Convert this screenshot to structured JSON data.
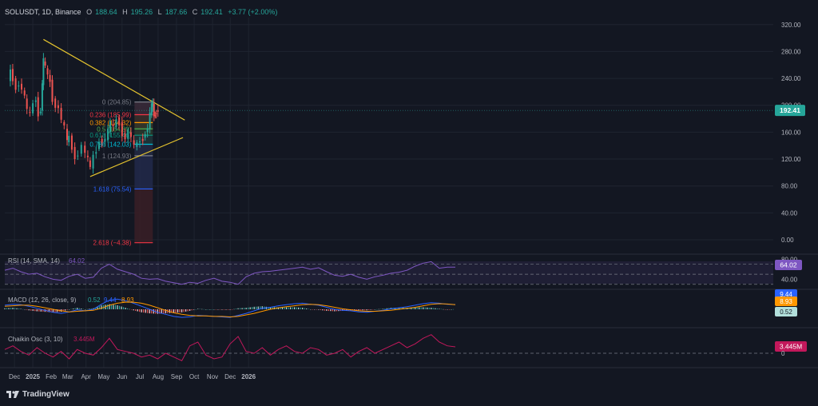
{
  "header": {
    "symbol": "SOLUSDT, 1D, Binance",
    "ohlc": [
      {
        "k": "O",
        "v": "188.64"
      },
      {
        "k": "H",
        "v": "195.26"
      },
      {
        "k": "L",
        "v": "187.66"
      },
      {
        "k": "C",
        "v": "192.41"
      }
    ],
    "change": "+3.77 (+2.00%)"
  },
  "colors": {
    "up": "#26a69a",
    "down": "#ef5350",
    "bg": "#131722",
    "grid": "#1f2430",
    "trend": "#e5c42e",
    "rsi": "#7e57c2",
    "macd": "#2962ff",
    "signal": "#ff9800",
    "chaikin": "#c2185b"
  },
  "chart_data": [
    {
      "type": "candlestick",
      "title": "SOLUSDT, 1D, Binance",
      "ylim": [
        -20,
        330
      ],
      "y_ticks": [
        "320.00",
        "280.00",
        "240.00",
        "200.00",
        "160.00",
        "120.00",
        "80.00",
        "40.00",
        "0.00"
      ],
      "x_ticks": [
        "Dec",
        "2025",
        "Feb",
        "Mar",
        "Apr",
        "May",
        "Jun",
        "Jul",
        "Aug",
        "Sep",
        "Oct",
        "Nov",
        "Dec",
        "2026"
      ],
      "price_label": "192.41",
      "price_series": [
        {
          "date": "2024-11-20",
          "close": 236
        },
        {
          "date": "2024-11-24",
          "close": 254
        },
        {
          "date": "2024-11-28",
          "close": 240
        },
        {
          "date": "2024-12-03",
          "close": 228
        },
        {
          "date": "2024-12-08",
          "close": 232
        },
        {
          "date": "2024-12-13",
          "close": 222
        },
        {
          "date": "2024-12-18",
          "close": 210
        },
        {
          "date": "2024-12-22",
          "close": 190
        },
        {
          "date": "2024-12-27",
          "close": 188
        },
        {
          "date": "2025-01-01",
          "close": 205
        },
        {
          "date": "2025-01-06",
          "close": 212
        },
        {
          "date": "2025-01-10",
          "close": 188
        },
        {
          "date": "2025-01-14",
          "close": 192
        },
        {
          "date": "2025-01-17",
          "close": 230
        },
        {
          "date": "2025-01-19",
          "close": 265
        },
        {
          "date": "2025-01-22",
          "close": 255
        },
        {
          "date": "2025-01-26",
          "close": 245
        },
        {
          "date": "2025-01-30",
          "close": 238
        },
        {
          "date": "2025-02-03",
          "close": 210
        },
        {
          "date": "2025-02-08",
          "close": 200
        },
        {
          "date": "2025-02-13",
          "close": 196
        },
        {
          "date": "2025-02-18",
          "close": 175
        },
        {
          "date": "2025-02-23",
          "close": 165
        },
        {
          "date": "2025-02-28",
          "close": 145
        },
        {
          "date": "2025-03-03",
          "close": 155
        },
        {
          "date": "2025-03-08",
          "close": 138
        },
        {
          "date": "2025-03-13",
          "close": 125
        },
        {
          "date": "2025-03-18",
          "close": 128
        },
        {
          "date": "2025-03-24",
          "close": 140
        },
        {
          "date": "2025-03-30",
          "close": 125
        },
        {
          "date": "2025-04-04",
          "close": 118
        },
        {
          "date": "2025-04-08",
          "close": 106
        },
        {
          "date": "2025-04-13",
          "close": 128
        },
        {
          "date": "2025-04-18",
          "close": 135
        },
        {
          "date": "2025-04-23",
          "close": 150
        },
        {
          "date": "2025-04-28",
          "close": 146
        },
        {
          "date": "2025-05-03",
          "close": 148
        },
        {
          "date": "2025-05-08",
          "close": 160
        },
        {
          "date": "2025-05-12",
          "close": 172
        },
        {
          "date": "2025-05-17",
          "close": 168
        },
        {
          "date": "2025-05-22",
          "close": 182
        },
        {
          "date": "2025-05-27",
          "close": 175
        },
        {
          "date": "2025-06-01",
          "close": 158
        },
        {
          "date": "2025-06-06",
          "close": 150
        },
        {
          "date": "2025-06-11",
          "close": 160
        },
        {
          "date": "2025-06-16",
          "close": 148
        },
        {
          "date": "2025-06-21",
          "close": 138
        },
        {
          "date": "2025-06-26",
          "close": 145
        },
        {
          "date": "2025-07-01",
          "close": 150
        },
        {
          "date": "2025-07-06",
          "close": 152
        },
        {
          "date": "2025-07-10",
          "close": 160
        },
        {
          "date": "2025-07-14",
          "close": 165
        },
        {
          "date": "2025-07-18",
          "close": 185
        },
        {
          "date": "2025-07-21",
          "close": 198
        },
        {
          "date": "2025-07-23",
          "close": 202
        },
        {
          "date": "2025-07-25",
          "close": 185
        },
        {
          "date": "2025-07-27",
          "close": 188
        },
        {
          "date": "2025-07-29",
          "close": 192.41
        }
      ],
      "trendlines": [
        {
          "from": {
            "date": "2025-01-19",
            "value": 298
          },
          "to": {
            "date": "2025-09-15",
            "value": 178
          }
        },
        {
          "from": {
            "date": "2025-04-08",
            "value": 94
          },
          "to": {
            "date": "2025-09-12",
            "value": 152
          }
        }
      ],
      "fib_range": {
        "start": "2025-06-22",
        "end": "2025-07-23"
      },
      "fib_levels": [
        {
          "ratio": "0",
          "value": 204.85,
          "label": "0 (204.85)",
          "color": "#787b86"
        },
        {
          "ratio": "0.236",
          "value": 185.99,
          "label": "0.236 (185.99)",
          "color": "#f23645"
        },
        {
          "ratio": "0.382",
          "value": 174.32,
          "label": "0.382 (174.32)",
          "color": "#ff9800"
        },
        {
          "ratio": "0.5",
          "value": 164.89,
          "label": "0.5 (164.89)",
          "color": "#4caf50"
        },
        {
          "ratio": "0.618",
          "value": 155.46,
          "label": "0.618 (155.46)",
          "color": "#089981"
        },
        {
          "ratio": "0.786",
          "value": 142.03,
          "label": "0.786 (142.03)",
          "color": "#00bcd4"
        },
        {
          "ratio": "1",
          "value": 124.93,
          "label": "1 (124.93)",
          "color": "#787b86"
        },
        {
          "ratio": "1.618",
          "value": 75.54,
          "label": "1.618 (75.54)",
          "color": "#2962ff"
        },
        {
          "ratio": "2.618",
          "value": -4.38,
          "label": "2.618 (−4.38)",
          "color": "#f23645"
        }
      ]
    },
    {
      "type": "line",
      "title": "RSI (14, SMA, 14)",
      "value_label": "64.02",
      "ylim": [
        20,
        90
      ],
      "bands": [
        30,
        50,
        70
      ],
      "y_ticks": [
        "80.00",
        "40.00"
      ],
      "values": [
        58,
        62,
        55,
        50,
        52,
        45,
        40,
        38,
        46,
        50,
        42,
        44,
        62,
        70,
        60,
        55,
        50,
        42,
        40,
        41,
        36,
        33,
        30,
        34,
        32,
        38,
        42,
        36,
        34,
        30,
        45,
        52,
        55,
        56,
        58,
        60,
        62,
        64,
        60,
        63,
        55,
        48,
        46,
        50,
        44,
        40,
        45,
        48,
        52,
        54,
        58,
        66,
        72,
        75,
        62,
        64,
        64.02
      ]
    },
    {
      "type": "line",
      "title": "MACD (12, 26, close, 9)",
      "labels": {
        "hist": "0.52",
        "macd": "9.44",
        "signal": "8.93"
      },
      "ylim": [
        -30,
        30
      ],
      "series": [
        {
          "name": "MACD",
          "values": [
            8,
            10,
            9,
            6,
            2,
            -2,
            -6,
            -8,
            -5,
            -1,
            -3,
            0,
            10,
            18,
            20,
            17,
            12,
            6,
            0,
            -6,
            -10,
            -14,
            -16,
            -15,
            -12,
            -13,
            -14,
            -15,
            -16,
            -12,
            -8,
            -3,
            2,
            4,
            7,
            9,
            11,
            12,
            10,
            8,
            4,
            0,
            -2,
            -3,
            -5,
            -6,
            -4,
            -2,
            1,
            3,
            5,
            8,
            11,
            13,
            12,
            10,
            9.44
          ]
        },
        {
          "name": "Signal",
          "values": [
            6,
            7,
            8,
            8,
            6,
            3,
            0,
            -3,
            -5,
            -4,
            -3,
            -2,
            2,
            8,
            12,
            14,
            14,
            12,
            8,
            3,
            -2,
            -7,
            -10,
            -12,
            -13,
            -13,
            -14,
            -14,
            -15,
            -14,
            -11,
            -8,
            -4,
            0,
            3,
            5,
            7,
            9,
            10,
            9,
            7,
            4,
            1,
            -1,
            -3,
            -4,
            -4,
            -3,
            -2,
            0,
            2,
            4,
            7,
            10,
            11,
            10.5,
            8.93
          ]
        }
      ]
    },
    {
      "type": "line",
      "title": "Chaikin Osc (3, 10)",
      "value_label": "3.445M",
      "zero_label": "0",
      "ylim": [
        -6,
        12
      ],
      "values": [
        2,
        4,
        1,
        -1,
        3,
        0,
        -2,
        1,
        -3,
        2,
        0,
        -1,
        3,
        8,
        2,
        1,
        0,
        -2,
        -1,
        -3,
        0,
        -2,
        -4,
        4,
        6,
        -1,
        -3,
        -2,
        5,
        9,
        1,
        0,
        3,
        -1,
        2,
        4,
        1,
        0,
        3,
        2,
        -1,
        0,
        2,
        -2,
        1,
        3,
        0,
        2,
        4,
        6,
        3,
        5,
        8,
        10,
        6,
        4,
        3.445
      ]
    }
  ],
  "footer": {
    "brand": "TradingView"
  }
}
